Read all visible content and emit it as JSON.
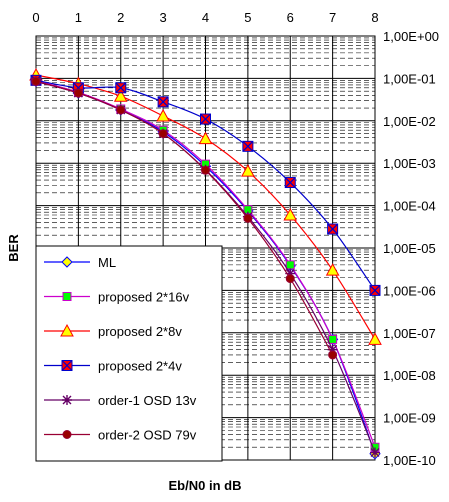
{
  "chart_data": {
    "type": "line",
    "title": "",
    "xlabel": "Eb/N0 in dB",
    "ylabel": "BER",
    "x_tick_labels": [
      "0",
      "1",
      "2",
      "3",
      "4",
      "5",
      "6",
      "7",
      "8"
    ],
    "y_tick_labels": [
      "1,00E+00",
      "1,00E-01",
      "1,00E-02",
      "1,00E-03",
      "1,00E-04",
      "1,00E-05",
      "1,00E-06",
      "1,00E-07",
      "1,00E-08",
      "1,00E-09",
      "1,00E-10"
    ],
    "xlim": [
      0,
      8
    ],
    "ylim": [
      1e-10,
      1
    ],
    "y_scale": "log",
    "grid": true,
    "legend_position": "bottom-left",
    "series": [
      {
        "name": "ML",
        "color": "#0000ff",
        "marker_color": "#ffff00",
        "marker": "diamond",
        "x": [
          0,
          1,
          2,
          3,
          4,
          5,
          6,
          7,
          8
        ],
        "y": [
          0.085,
          0.045,
          0.018,
          0.0055,
          0.00085,
          7.5e-05,
          3.8e-06,
          7e-08,
          1.4e-10
        ]
      },
      {
        "name": "proposed 2*16v",
        "color": "#cc00cc",
        "marker_color": "#00ff00",
        "marker": "square",
        "x": [
          0,
          1,
          2,
          3,
          4,
          5,
          6,
          7,
          8
        ],
        "y": [
          0.088,
          0.047,
          0.019,
          0.006,
          0.00095,
          8e-05,
          4e-06,
          7e-08,
          2e-10
        ]
      },
      {
        "name": "proposed 2*8v",
        "color": "#ff0000",
        "marker_color": "#ffff00",
        "marker": "triangle",
        "x": [
          0,
          1,
          2,
          3,
          4,
          5,
          6,
          7,
          8
        ],
        "y": [
          0.12,
          0.075,
          0.038,
          0.013,
          0.0038,
          0.00065,
          6e-05,
          3e-06,
          7e-08
        ]
      },
      {
        "name": "proposed 2*4v",
        "color": "#0000cc",
        "marker_color": "#ff0000",
        "marker": "square-x",
        "x": [
          0,
          1,
          2,
          3,
          4,
          5,
          6,
          7,
          8
        ],
        "y": [
          0.09,
          0.06,
          0.06,
          0.028,
          0.011,
          0.0025,
          0.00035,
          2.8e-05,
          1e-06
        ]
      },
      {
        "name": "order-1 OSD 13v",
        "color": "#660066",
        "marker_color": "#660066",
        "marker": "star",
        "x": [
          0,
          1,
          2,
          3,
          4,
          5,
          6,
          7,
          8
        ],
        "y": [
          0.085,
          0.045,
          0.018,
          0.005,
          0.0007,
          5.5e-05,
          2.5e-06,
          4e-08,
          1.5e-10
        ]
      },
      {
        "name": "order-2 OSD 79v",
        "color": "#990033",
        "marker_color": "#990000",
        "marker": "circle",
        "x": [
          0,
          1,
          2,
          3,
          4,
          5,
          6,
          7
        ],
        "y": [
          0.085,
          0.045,
          0.018,
          0.005,
          0.00068,
          5e-05,
          1.9e-06,
          3e-08
        ]
      }
    ]
  }
}
